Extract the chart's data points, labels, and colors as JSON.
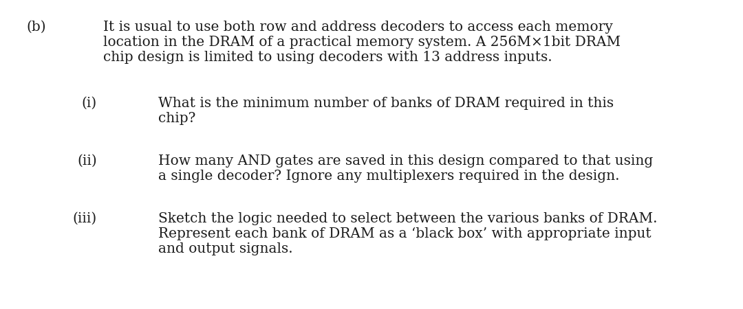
{
  "background_color": "#ffffff",
  "label_b": "(b)",
  "label_i": "(i)",
  "label_ii": "(ii)",
  "label_iii": "(iii)",
  "text_b_line1": "It is usual to use both row and address decoders to access each memory",
  "text_b_line2": "location in the DRAM of a practical memory system. A 256M×1bit DRAM",
  "text_b_line3": "chip design is limited to using decoders with 13 address inputs.",
  "text_i_line1": "What is the minimum number of banks of DRAM required in this",
  "text_i_line2": "chip?",
  "text_ii_line1": "How many AND gates are saved in this design compared to that using",
  "text_ii_line2": "a single decoder? Ignore any multiplexers required in the design.",
  "text_iii_line1": "Sketch the logic needed to select between the various banks of DRAM.",
  "text_iii_line2": "Represent each bank of DRAM as a ‘black box’ with appropriate input",
  "text_iii_line3": "and output signals.",
  "font_family": "DejaVu Serif",
  "font_size": 14.5,
  "text_color": "#1c1c1c",
  "fig_width": 10.8,
  "fig_height": 4.5,
  "dpi": 100
}
